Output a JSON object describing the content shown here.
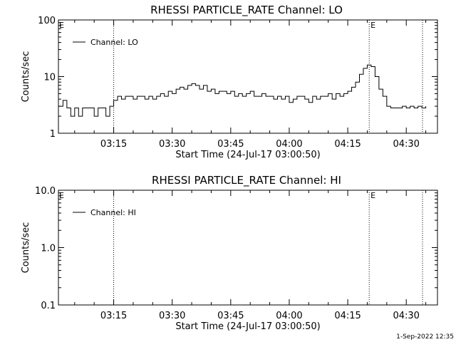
{
  "chart_data": [
    {
      "type": "line",
      "title": "RHESSI PARTICLE_RATE Channel: LO",
      "xlabel": "Start Time (24-Jul-17 03:00:50)",
      "ylabel": "Counts/sec",
      "y_scale": "log",
      "ylim": [
        1,
        100
      ],
      "x_range": [
        "03:00:50",
        "04:38:00"
      ],
      "x_tick_labels": [
        "03:15",
        "03:30",
        "03:45",
        "04:00",
        "04:15",
        "04:30"
      ],
      "y_tick_labels": [
        "1",
        "10",
        "100"
      ],
      "legend": {
        "label": "Channel: LO",
        "placement": "top-left"
      },
      "event_markers": [
        {
          "time": "03:15:00",
          "label": ""
        },
        {
          "time": "04:20:30",
          "label": "E"
        },
        {
          "time": "04:34:10",
          "label": ""
        }
      ],
      "corner_label": "E",
      "grid": false,
      "series": [
        {
          "name": "Channel: LO",
          "times": [
            "03:01",
            "03:02",
            "03:03",
            "03:04",
            "03:05",
            "03:06",
            "03:07",
            "03:08",
            "03:09",
            "03:10",
            "03:11",
            "03:12",
            "03:13",
            "03:14",
            "03:15",
            "03:16",
            "03:17",
            "03:18",
            "03:19",
            "03:20",
            "03:21",
            "03:22",
            "03:23",
            "03:24",
            "03:25",
            "03:26",
            "03:27",
            "03:28",
            "03:29",
            "03:30",
            "03:31",
            "03:32",
            "03:33",
            "03:34",
            "03:35",
            "03:36",
            "03:37",
            "03:38",
            "03:39",
            "03:40",
            "03:41",
            "03:42",
            "03:43",
            "03:44",
            "03:45",
            "03:46",
            "03:47",
            "03:48",
            "03:49",
            "03:50",
            "03:51",
            "03:52",
            "03:53",
            "03:54",
            "03:55",
            "03:56",
            "03:57",
            "03:58",
            "03:59",
            "04:00",
            "04:01",
            "04:02",
            "04:03",
            "04:04",
            "04:05",
            "04:06",
            "04:07",
            "04:08",
            "04:09",
            "04:10",
            "04:11",
            "04:12",
            "04:13",
            "04:14",
            "04:15",
            "04:16",
            "04:17",
            "04:18",
            "04:19",
            "04:20",
            "04:21",
            "04:22",
            "04:23",
            "04:24",
            "04:25",
            "04:26",
            "04:27",
            "04:28",
            "04:29",
            "04:30",
            "04:31",
            "04:32",
            "04:33",
            "04:34",
            "04:35"
          ],
          "values": [
            3.0,
            3.8,
            2.8,
            2.0,
            2.8,
            2.0,
            2.8,
            2.8,
            2.8,
            2.0,
            2.8,
            2.8,
            2.0,
            3.0,
            3.8,
            4.5,
            4.0,
            4.5,
            4.5,
            4.0,
            4.5,
            4.5,
            4.0,
            4.5,
            4.0,
            4.5,
            5.0,
            4.5,
            5.5,
            5.0,
            6.0,
            6.5,
            6.0,
            7.0,
            7.5,
            7.0,
            6.0,
            7.0,
            5.5,
            6.0,
            5.0,
            5.5,
            5.5,
            5.0,
            5.5,
            4.5,
            5.0,
            4.5,
            5.0,
            5.5,
            4.5,
            4.5,
            5.0,
            4.5,
            4.5,
            4.0,
            4.5,
            4.0,
            4.5,
            3.5,
            4.0,
            4.5,
            4.5,
            4.0,
            3.5,
            4.5,
            4.0,
            4.5,
            4.5,
            5.0,
            4.0,
            5.0,
            4.5,
            5.0,
            5.5,
            6.5,
            8.0,
            11.0,
            14.0,
            16.0,
            15.0,
            10.0,
            6.0,
            4.5,
            3.0,
            2.8,
            2.8,
            2.8,
            3.0,
            2.8,
            3.0,
            2.8,
            3.0,
            2.8,
            3.0
          ]
        }
      ]
    },
    {
      "type": "line",
      "title": "RHESSI PARTICLE_RATE Channel: HI",
      "xlabel": "Start Time (24-Jul-17 03:00:50)",
      "ylabel": "Counts/sec",
      "y_scale": "log",
      "ylim": [
        0.1,
        10
      ],
      "x_range": [
        "03:00:50",
        "04:38:00"
      ],
      "x_tick_labels": [
        "03:15",
        "03:30",
        "03:45",
        "04:00",
        "04:15",
        "04:30"
      ],
      "y_tick_labels": [
        "0.1",
        "1.0",
        "10.0"
      ],
      "legend": {
        "label": "Channel: HI",
        "placement": "top-left"
      },
      "event_markers": [
        {
          "time": "03:15:00",
          "label": ""
        },
        {
          "time": "04:20:30",
          "label": "E"
        },
        {
          "time": "04:34:10",
          "label": ""
        }
      ],
      "corner_label": "E",
      "grid": false,
      "series": [
        {
          "name": "Channel: HI",
          "times": [],
          "values": []
        }
      ]
    }
  ],
  "footer": {
    "timestamp": "1-Sep-2022 12:35"
  }
}
